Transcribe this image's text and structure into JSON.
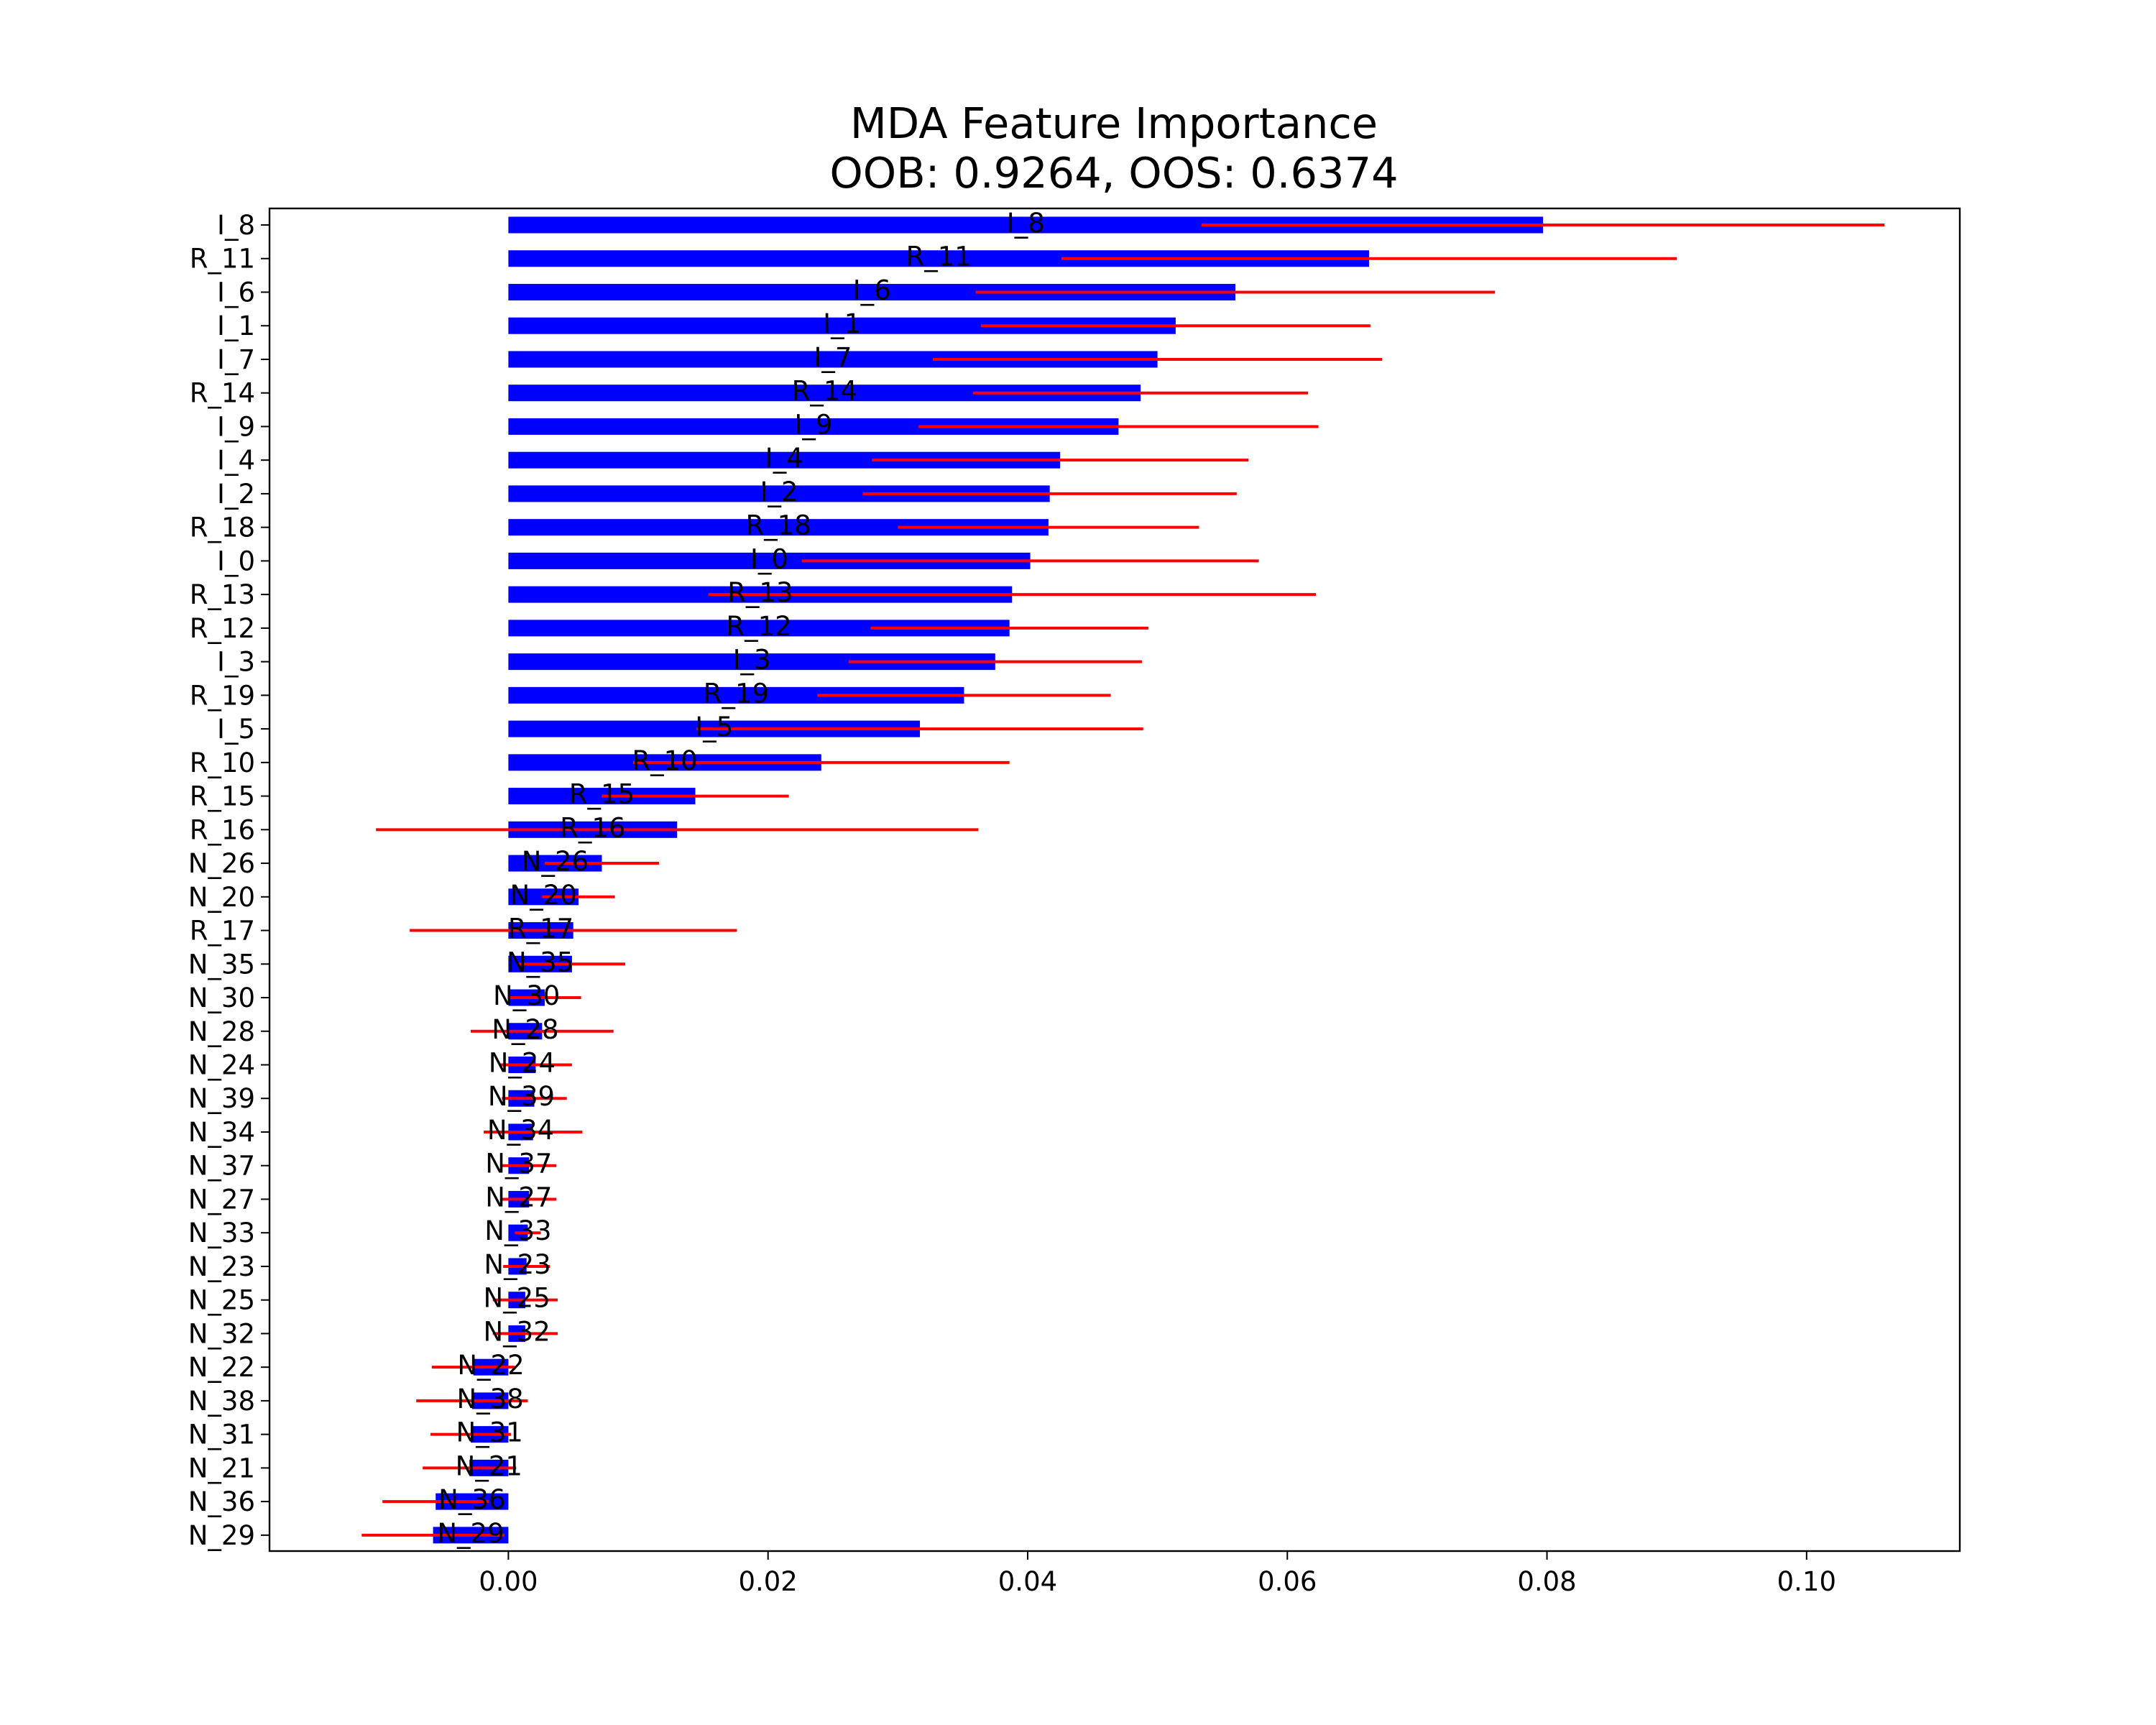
{
  "chart_data": {
    "type": "bar",
    "orientation": "horizontal",
    "title": "MDA Feature Importance",
    "subtitle": "OOB: 0.9264, OOS: 0.6374",
    "xlabel": "",
    "ylabel": "",
    "xlim": [
      -0.0184,
      0.1118
    ],
    "xticks": [
      0.0,
      0.02,
      0.04,
      0.06,
      0.08,
      0.1
    ],
    "xtick_labels": [
      "0.00",
      "0.02",
      "0.04",
      "0.06",
      "0.08",
      "0.10"
    ],
    "grid": false,
    "legend": false,
    "bar_color": "#0000ff",
    "error_bar_color": "#ff0000",
    "categories": [
      "I_8",
      "R_11",
      "I_6",
      "I_1",
      "I_7",
      "R_14",
      "I_9",
      "I_4",
      "I_2",
      "R_18",
      "I_0",
      "R_13",
      "R_12",
      "I_3",
      "R_19",
      "I_5",
      "R_10",
      "R_15",
      "R_16",
      "N_26",
      "N_20",
      "R_17",
      "N_35",
      "N_30",
      "N_28",
      "N_24",
      "N_39",
      "N_34",
      "N_37",
      "N_27",
      "N_33",
      "N_23",
      "N_25",
      "N_32",
      "N_22",
      "N_38",
      "N_31",
      "N_21",
      "N_36",
      "N_29"
    ],
    "values": [
      0.0797,
      0.0663,
      0.056,
      0.0514,
      0.05,
      0.0487,
      0.047,
      0.0425,
      0.0417,
      0.0416,
      0.0402,
      0.0388,
      0.0386,
      0.0375,
      0.0351,
      0.0317,
      0.0241,
      0.0144,
      0.013,
      0.0072,
      0.0054,
      0.005,
      0.0049,
      0.0028,
      0.0026,
      0.0021,
      0.002,
      0.0019,
      0.0016,
      0.0016,
      0.0015,
      0.0014,
      0.0013,
      0.0013,
      -0.0027,
      -0.0028,
      -0.0029,
      -0.003,
      -0.0056,
      -0.0058
    ],
    "errors": [
      0.0263,
      0.0237,
      0.02,
      0.015,
      0.0173,
      0.0129,
      0.0154,
      0.0145,
      0.0144,
      0.0116,
      0.0176,
      0.0234,
      0.0107,
      0.0113,
      0.0113,
      0.0172,
      0.0145,
      0.0072,
      0.0232,
      0.0044,
      0.0028,
      0.0126,
      0.0041,
      0.0028,
      0.0055,
      0.0028,
      0.0025,
      0.0038,
      0.0021,
      0.0021,
      0.001,
      0.0018,
      0.0025,
      0.0025,
      0.0032,
      0.0043,
      0.0031,
      0.0036,
      0.0041,
      0.0055
    ]
  }
}
